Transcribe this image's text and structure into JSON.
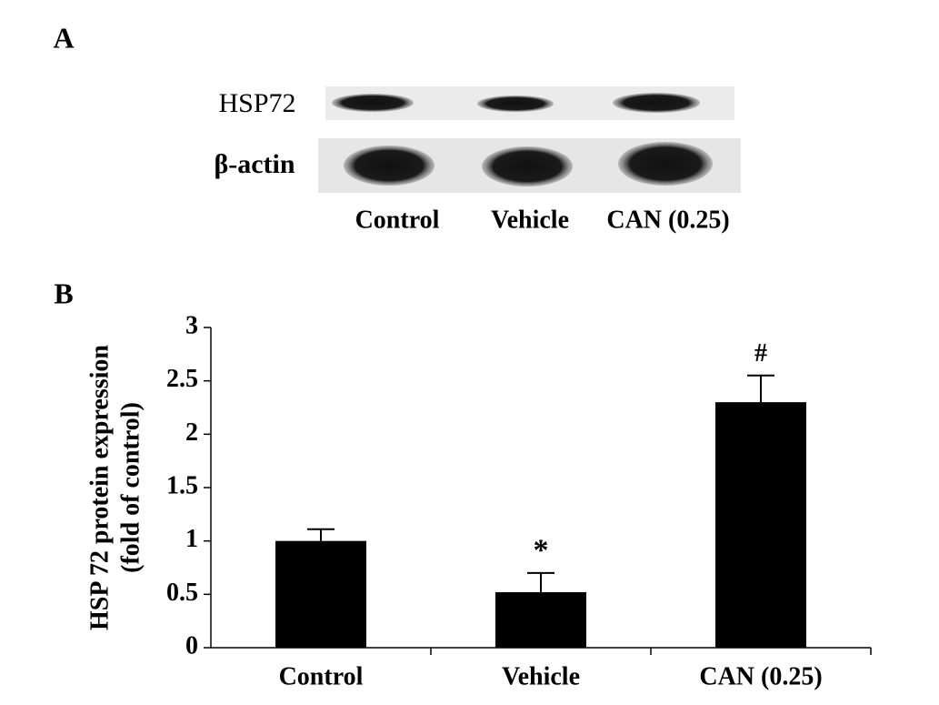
{
  "panel_a": {
    "label": "A",
    "rows": [
      "HSP72",
      "β-actin"
    ],
    "lanes": [
      "Control",
      "Vehicle",
      "CAN (0.25)"
    ]
  },
  "chart_data": {
    "type": "bar",
    "panel_label": "B",
    "ylabel": [
      "HSP 72 protein expression",
      "(fold of control)"
    ],
    "categories": [
      "Control",
      "Vehicle",
      "CAN (0.25)"
    ],
    "values": [
      1.0,
      0.52,
      2.3
    ],
    "errors": [
      0.11,
      0.18,
      0.25
    ],
    "color": "#000000",
    "annotations": [
      {
        "category": "Vehicle",
        "text": "*"
      },
      {
        "category": "CAN (0.25)",
        "text": "#"
      }
    ],
    "ylim": [
      0,
      3
    ],
    "yticks": [
      0,
      0.5,
      1,
      1.5,
      2,
      2.5,
      3
    ],
    "grid": false
  }
}
